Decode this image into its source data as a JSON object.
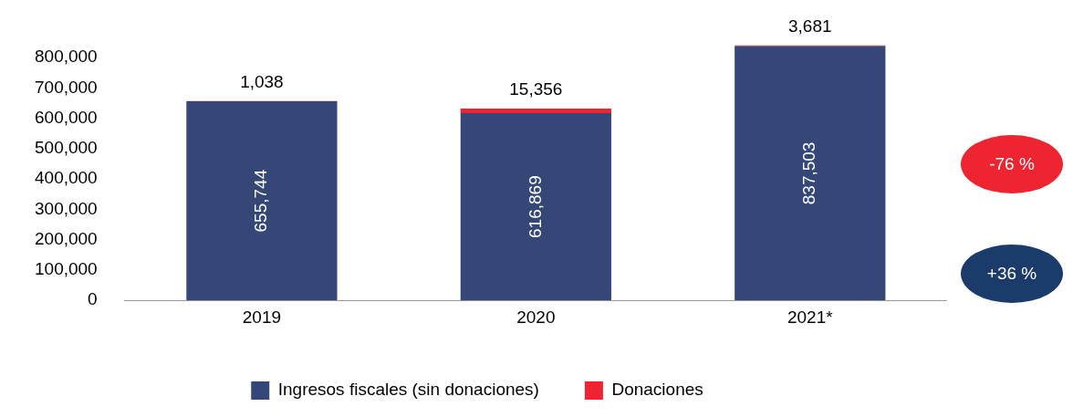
{
  "chart_data": {
    "type": "bar",
    "stacked": true,
    "categories": [
      "2019",
      "2020",
      "2021*"
    ],
    "series": [
      {
        "name": "Ingresos fiscales (sin donaciones)",
        "color": "#344777",
        "values": [
          655744,
          616869,
          837503
        ],
        "value_labels": [
          "655,744",
          "616,869",
          "837,503"
        ]
      },
      {
        "name": "Donaciones",
        "color": "#ee2430",
        "values": [
          1038,
          15356,
          3681
        ],
        "value_labels": [
          "1,038",
          "15,356",
          "3,681"
        ]
      }
    ],
    "yticks": [
      {
        "value": 0,
        "label": "0"
      },
      {
        "value": 100000,
        "label": "100,000"
      },
      {
        "value": 200000,
        "label": "200,000"
      },
      {
        "value": 300000,
        "label": "300,000"
      },
      {
        "value": 400000,
        "label": "400,000"
      },
      {
        "value": 500000,
        "label": "500,000"
      },
      {
        "value": 600000,
        "label": "600,000"
      },
      {
        "value": 700000,
        "label": "700,000"
      },
      {
        "value": 800000,
        "label": "800,000"
      }
    ],
    "ylim": [
      0,
      841184
    ],
    "grid": false,
    "legend": "bottom",
    "annotations": [
      "-76 %",
      "+36 %"
    ]
  }
}
